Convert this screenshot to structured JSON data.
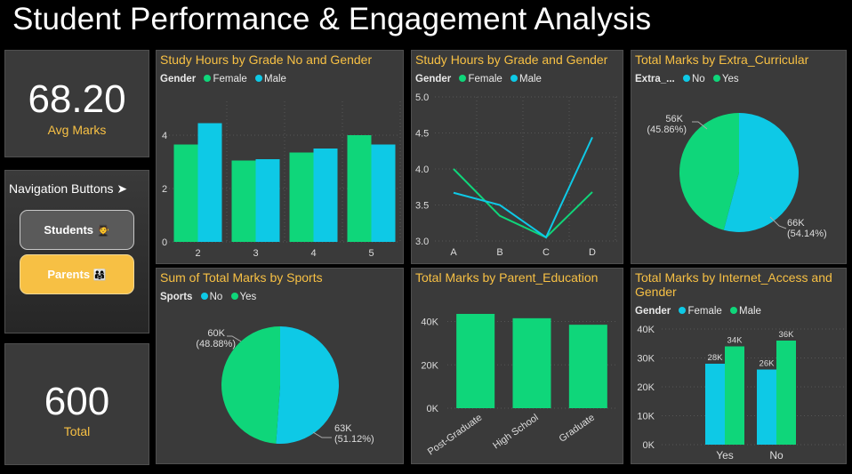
{
  "title": "Student Performance & Engagement Analysis",
  "colors": {
    "green": "#0fd67a",
    "cyan": "#0ec9e6",
    "accent": "#f7c044"
  },
  "kpi_avg": {
    "value": "68.20",
    "label": "Avg Marks"
  },
  "kpi_total": {
    "value": "600",
    "label": "Total"
  },
  "navigation": {
    "title": "Navigation Buttons",
    "arrow_icon": "➤",
    "students_label": "Students",
    "students_icon": "🧑‍🎓",
    "parents_label": "Parents",
    "parents_icon": "👨‍👩‍👧"
  },
  "chart_data": [
    {
      "id": "study_grade_no",
      "type": "bar",
      "title": "Study Hours by Grade No and Gender",
      "legend_title": "Gender",
      "legend": [
        "Female",
        "Male"
      ],
      "categories": [
        "2",
        "3",
        "4",
        "5"
      ],
      "series": [
        {
          "name": "Female",
          "values": [
            3.65,
            3.05,
            3.35,
            4.0
          ]
        },
        {
          "name": "Male",
          "values": [
            4.45,
            3.1,
            3.5,
            3.65
          ]
        }
      ],
      "yticks": [
        "0",
        "2",
        "4"
      ],
      "ylim": [
        0,
        5.0
      ]
    },
    {
      "id": "study_grade",
      "type": "line",
      "title": "Study Hours by Grade and Gender",
      "legend_title": "Gender",
      "legend": [
        "Female",
        "Male"
      ],
      "categories": [
        "A",
        "B",
        "C",
        "D"
      ],
      "series": [
        {
          "name": "Female",
          "values": [
            4.0,
            3.35,
            3.05,
            3.68
          ]
        },
        {
          "name": "Male",
          "values": [
            3.67,
            3.5,
            3.05,
            4.44
          ]
        }
      ],
      "yticks": [
        "3.0",
        "3.5",
        "4.0",
        "4.5",
        "5.0"
      ],
      "ylim": [
        3.0,
        5.0
      ]
    },
    {
      "id": "extra_curricular",
      "type": "pie",
      "title": "Total Marks by Extra_Curricular",
      "legend_title": "Extra_...",
      "legend": [
        "No",
        "Yes"
      ],
      "slices": [
        {
          "name": "No",
          "value": 66,
          "label": "66K",
          "pct": "(54.14%)",
          "fraction": 0.5414
        },
        {
          "name": "Yes",
          "value": 56,
          "label": "56K",
          "pct": "(45.86%)",
          "fraction": 0.4586
        }
      ]
    },
    {
      "id": "sports",
      "type": "pie",
      "title": "Sum of Total Marks by Sports",
      "legend_title": "Sports",
      "legend": [
        "No",
        "Yes"
      ],
      "slices": [
        {
          "name": "No",
          "value": 63,
          "label": "63K",
          "pct": "(51.12%)",
          "fraction": 0.5112
        },
        {
          "name": "Yes",
          "value": 60,
          "label": "60K",
          "pct": "(48.88%)",
          "fraction": 0.4888
        }
      ]
    },
    {
      "id": "parent_education",
      "type": "bar",
      "title": "Total Marks by Parent_Education",
      "categories": [
        "Post-Graduate",
        "High School",
        "Graduate"
      ],
      "values": [
        43500,
        41500,
        38500
      ],
      "yticks": [
        "0K",
        "20K",
        "40K"
      ],
      "ylim": [
        0,
        48000
      ]
    },
    {
      "id": "internet_access",
      "type": "bar",
      "title": "Total Marks by Internet_Access and Gender",
      "legend_title": "Gender",
      "legend": [
        "Female",
        "Male"
      ],
      "categories": [
        "Yes",
        "No"
      ],
      "series": [
        {
          "name": "Female",
          "values": [
            28,
            26
          ],
          "labels": [
            "28K",
            "26K"
          ]
        },
        {
          "name": "Male",
          "values": [
            34,
            36
          ],
          "labels": [
            "34K",
            "36K"
          ]
        }
      ],
      "yticks": [
        "0K",
        "10K",
        "20K",
        "30K",
        "40K"
      ],
      "ylim": [
        0,
        40
      ]
    }
  ]
}
